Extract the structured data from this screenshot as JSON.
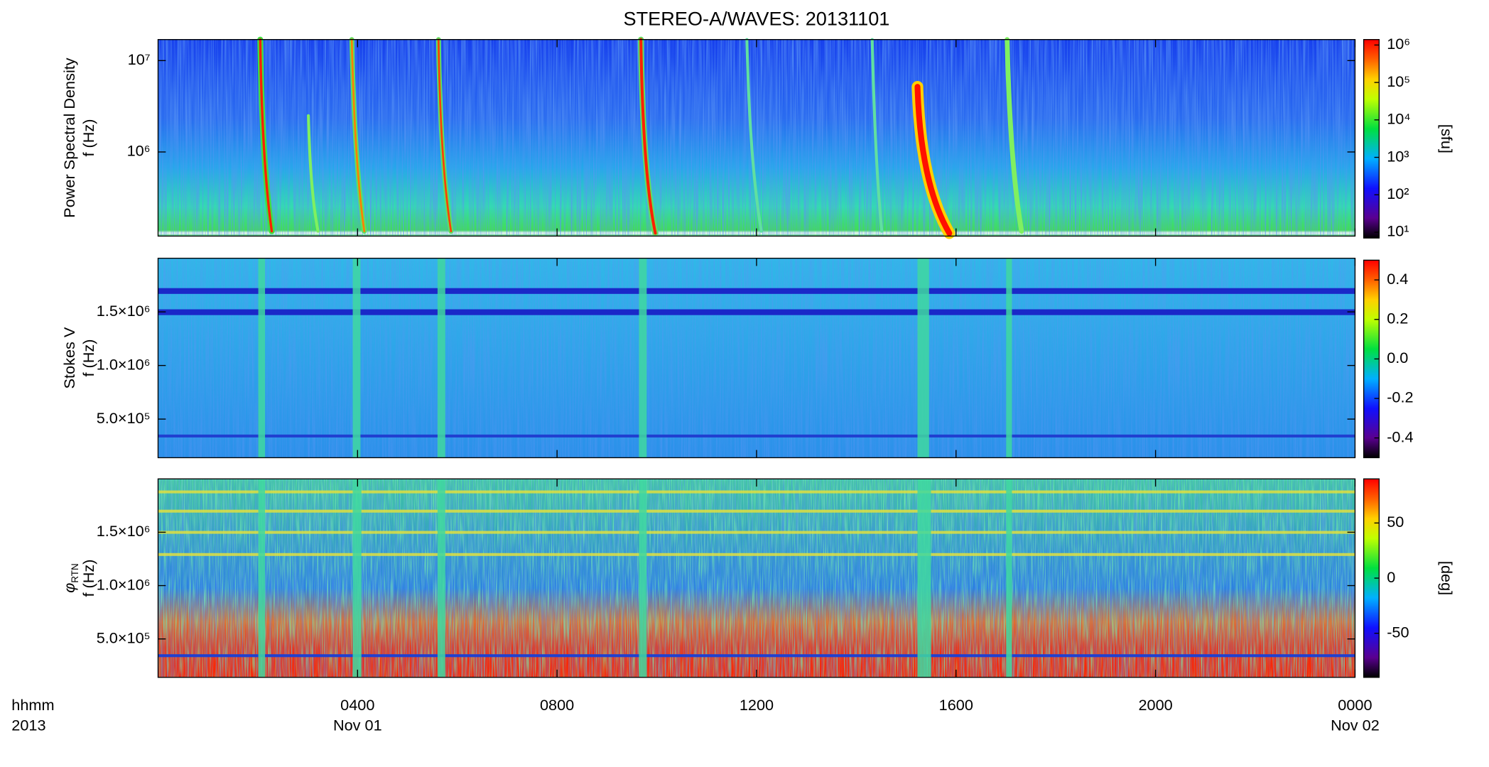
{
  "chart_data": [
    {
      "type": "heatmap",
      "title": "STEREO-A/WAVES: 20131101",
      "ylabel": [
        "Power Spectral Density",
        "f (Hz)"
      ],
      "log_y": true,
      "ylim": [
        120000,
        17000000
      ],
      "yticks": [
        {
          "value": 1000000,
          "label": "10⁶"
        },
        {
          "value": 10000000,
          "label": "10⁷"
        }
      ],
      "colorbar_log": true,
      "clim": [
        7,
        1400000
      ],
      "cticks": [
        {
          "value": 10,
          "label": "10¹"
        },
        {
          "value": 100,
          "label": "10²"
        },
        {
          "value": 1000,
          "label": "10³"
        },
        {
          "value": 10000,
          "label": "10⁴"
        },
        {
          "value": 100000,
          "label": "10⁵"
        },
        {
          "value": 1000000,
          "label": "10⁶"
        }
      ],
      "clabel": "[sfu]"
    },
    {
      "type": "heatmap",
      "ylabel": [
        "Stokes V",
        "f (Hz)"
      ],
      "ylim": [
        140000,
        2000000
      ],
      "yticks": [
        {
          "value": 500000,
          "label": "5.0×10⁵"
        },
        {
          "value": 1000000,
          "label": "1.0×10⁶"
        },
        {
          "value": 1500000,
          "label": "1.5×10⁶"
        }
      ],
      "clim": [
        -0.5,
        0.5
      ],
      "cticks": [
        -0.4,
        -0.2,
        {
          "value": 0,
          "label": "0.0"
        },
        0.2,
        0.4
      ]
    },
    {
      "type": "heatmap",
      "ylabel_symbol": "φ",
      "ylabel_subscript": "RTN",
      "ylabel": [
        "f (Hz)"
      ],
      "ylim": [
        140000,
        2000000
      ],
      "yticks": [
        {
          "value": 500000,
          "label": "5.0×10⁵"
        },
        {
          "value": 1000000,
          "label": "1.0×10⁶"
        },
        {
          "value": 1500000,
          "label": "1.5×10⁶"
        }
      ],
      "clim": [
        -90,
        90
      ],
      "cticks": [
        -50,
        0,
        50
      ],
      "clabel": "[deg]",
      "xlim": [
        0,
        24
      ],
      "xticks": [
        {
          "value": 4,
          "label": "0400"
        },
        {
          "value": 8,
          "label": "0800"
        },
        {
          "value": 12,
          "label": "1200"
        },
        {
          "value": 16,
          "label": "1600"
        },
        {
          "value": 20,
          "label": "2000"
        },
        {
          "value": 24,
          "label": "0000"
        }
      ],
      "xtick_dates": [
        {
          "value": 4,
          "label": "Nov 01"
        },
        {
          "value": 24,
          "label": "Nov 02"
        }
      ],
      "xlabel": [
        "hhmm",
        "2013"
      ]
    }
  ]
}
